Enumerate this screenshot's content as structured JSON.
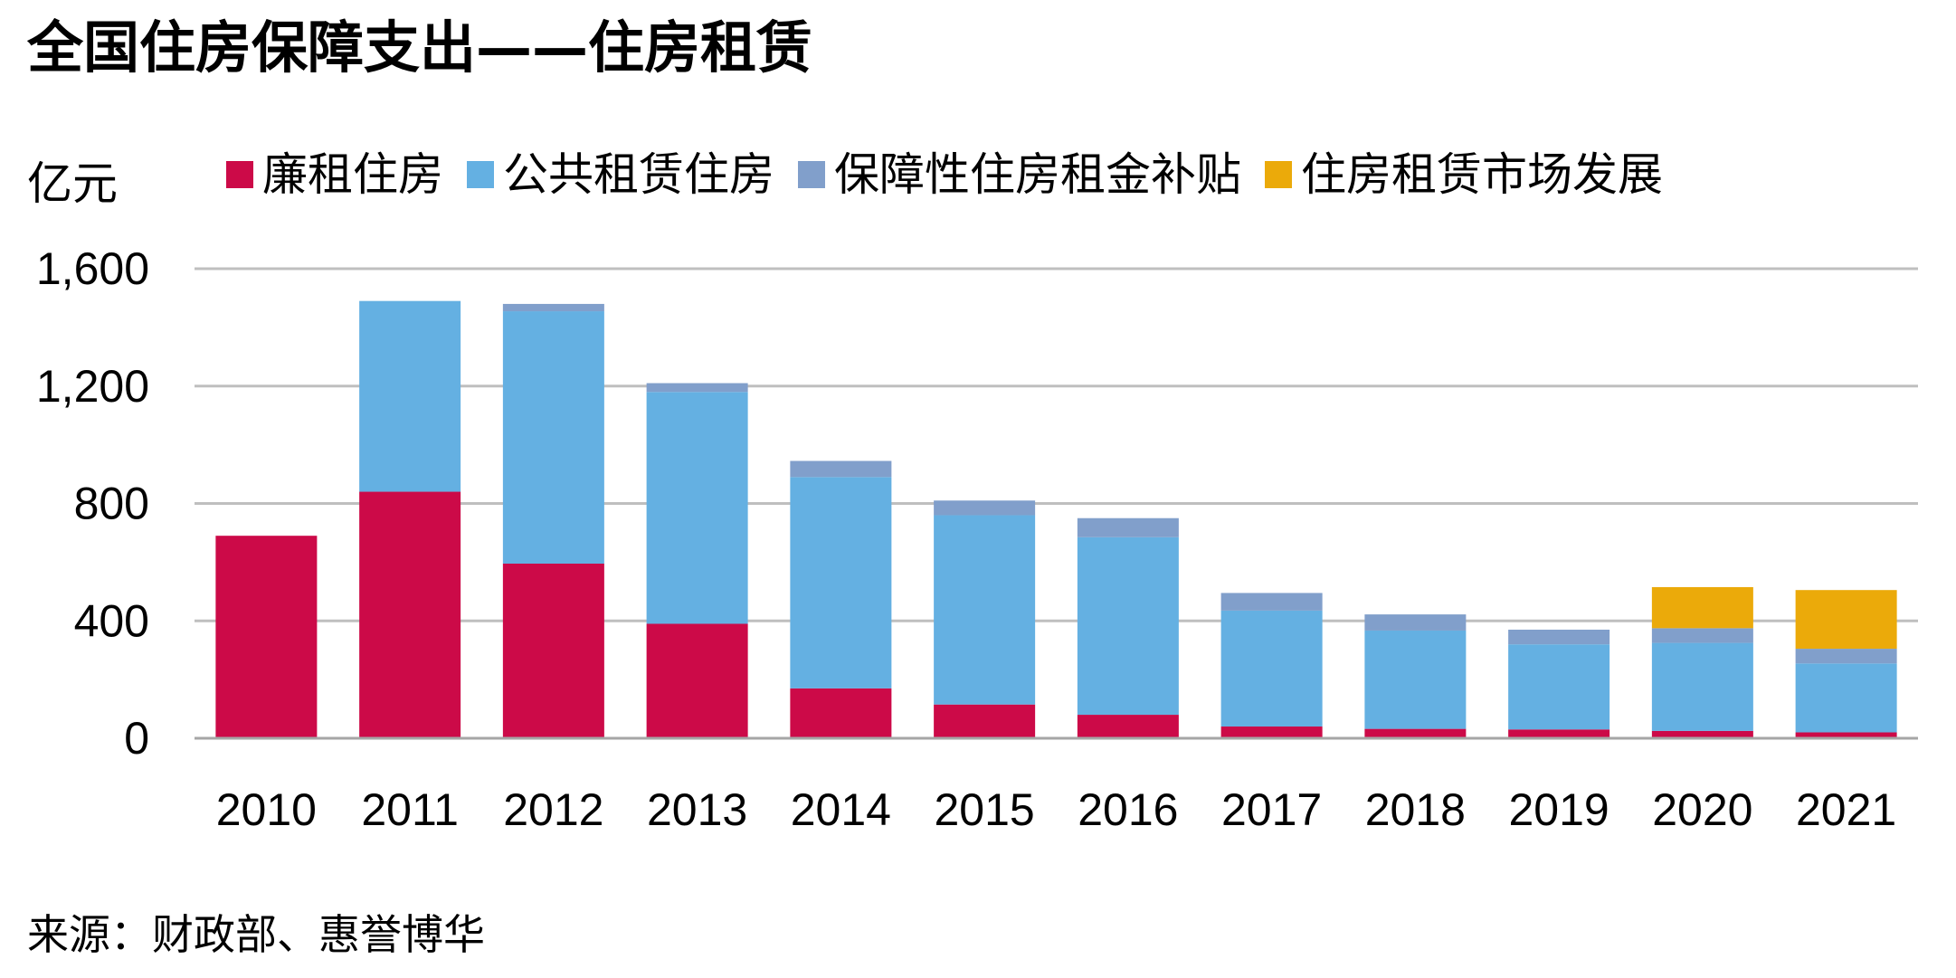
{
  "title": "全国住房保障支出——住房租赁",
  "y_unit": "亿元",
  "source": "来源：财政部、惠誉博华",
  "colors": {
    "lianzu": "#CC0A48",
    "gongzu": "#64B0E2",
    "butie": "#819FCB",
    "shichang": "#EBAA0A",
    "grid": "#BFBFBF",
    "axis": "#A6A6A6"
  },
  "chart_data": {
    "type": "bar",
    "stacked": true,
    "categories": [
      "2010",
      "2011",
      "2012",
      "2013",
      "2014",
      "2015",
      "2016",
      "2017",
      "2018",
      "2019",
      "2020",
      "2021"
    ],
    "series": [
      {
        "name": "廉租住房",
        "color": "#CC0A48",
        "values": [
          690,
          840,
          595,
          390,
          170,
          115,
          80,
          40,
          32,
          30,
          25,
          20
        ]
      },
      {
        "name": "公共租赁住房",
        "color": "#64B0E2",
        "values": [
          0,
          650,
          860,
          790,
          720,
          645,
          605,
          395,
          335,
          290,
          300,
          235
        ]
      },
      {
        "name": "保障性住房租金补贴",
        "color": "#819FCB",
        "values": [
          0,
          0,
          25,
          30,
          55,
          50,
          65,
          60,
          55,
          50,
          50,
          50
        ]
      },
      {
        "name": "住房租赁市场发展",
        "color": "#EBAA0A",
        "values": [
          0,
          0,
          0,
          0,
          0,
          0,
          0,
          0,
          0,
          0,
          140,
          200
        ]
      }
    ],
    "ylim": [
      0,
      1600
    ],
    "yticks": [
      0,
      400,
      800,
      1200,
      1600
    ],
    "ytick_labels": [
      "0",
      "400",
      "800",
      "1,200",
      "1,600"
    ],
    "grid": true,
    "legend_position": "top"
  }
}
